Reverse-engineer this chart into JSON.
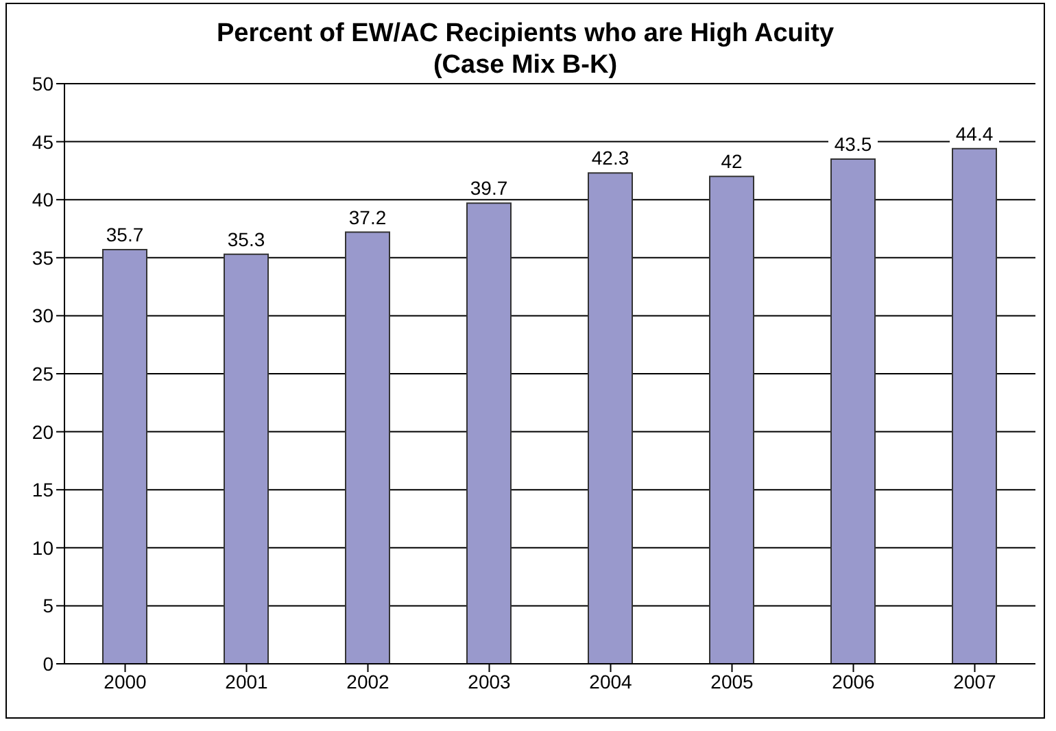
{
  "chart_data": {
    "type": "bar",
    "title": "Percent of EW/AC Recipients who are High Acuity\n(Case Mix B-K)",
    "categories": [
      "2000",
      "2001",
      "2002",
      "2003",
      "2004",
      "2005",
      "2006",
      "2007"
    ],
    "values": [
      35.7,
      35.3,
      37.2,
      39.7,
      42.3,
      42,
      43.5,
      44.4
    ],
    "color": "#9999cc",
    "ylim": [
      0,
      50
    ],
    "yticks": [
      0,
      5,
      10,
      15,
      20,
      25,
      30,
      35,
      40,
      45,
      50
    ],
    "grid": "y",
    "data_labels": true,
    "legend": false
  }
}
